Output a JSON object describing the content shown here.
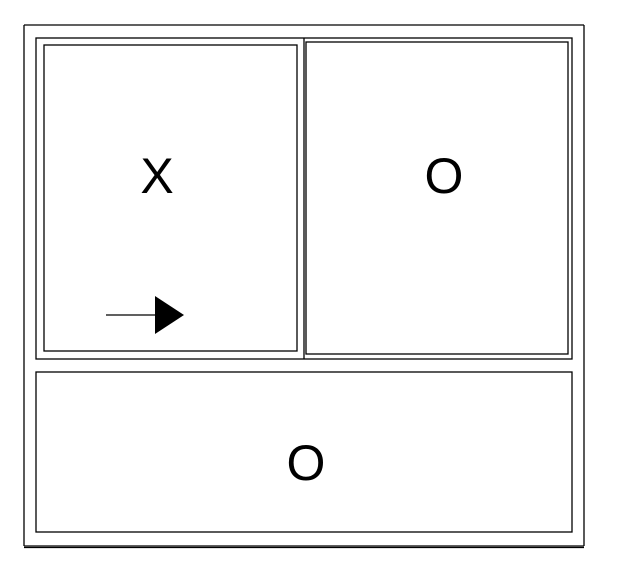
{
  "window_diagram": {
    "panels": [
      {
        "label": "X",
        "type": "sliding",
        "slide_direction": "right"
      },
      {
        "label": "O",
        "type": "fixed"
      },
      {
        "label": "O",
        "type": "fixed"
      }
    ]
  }
}
